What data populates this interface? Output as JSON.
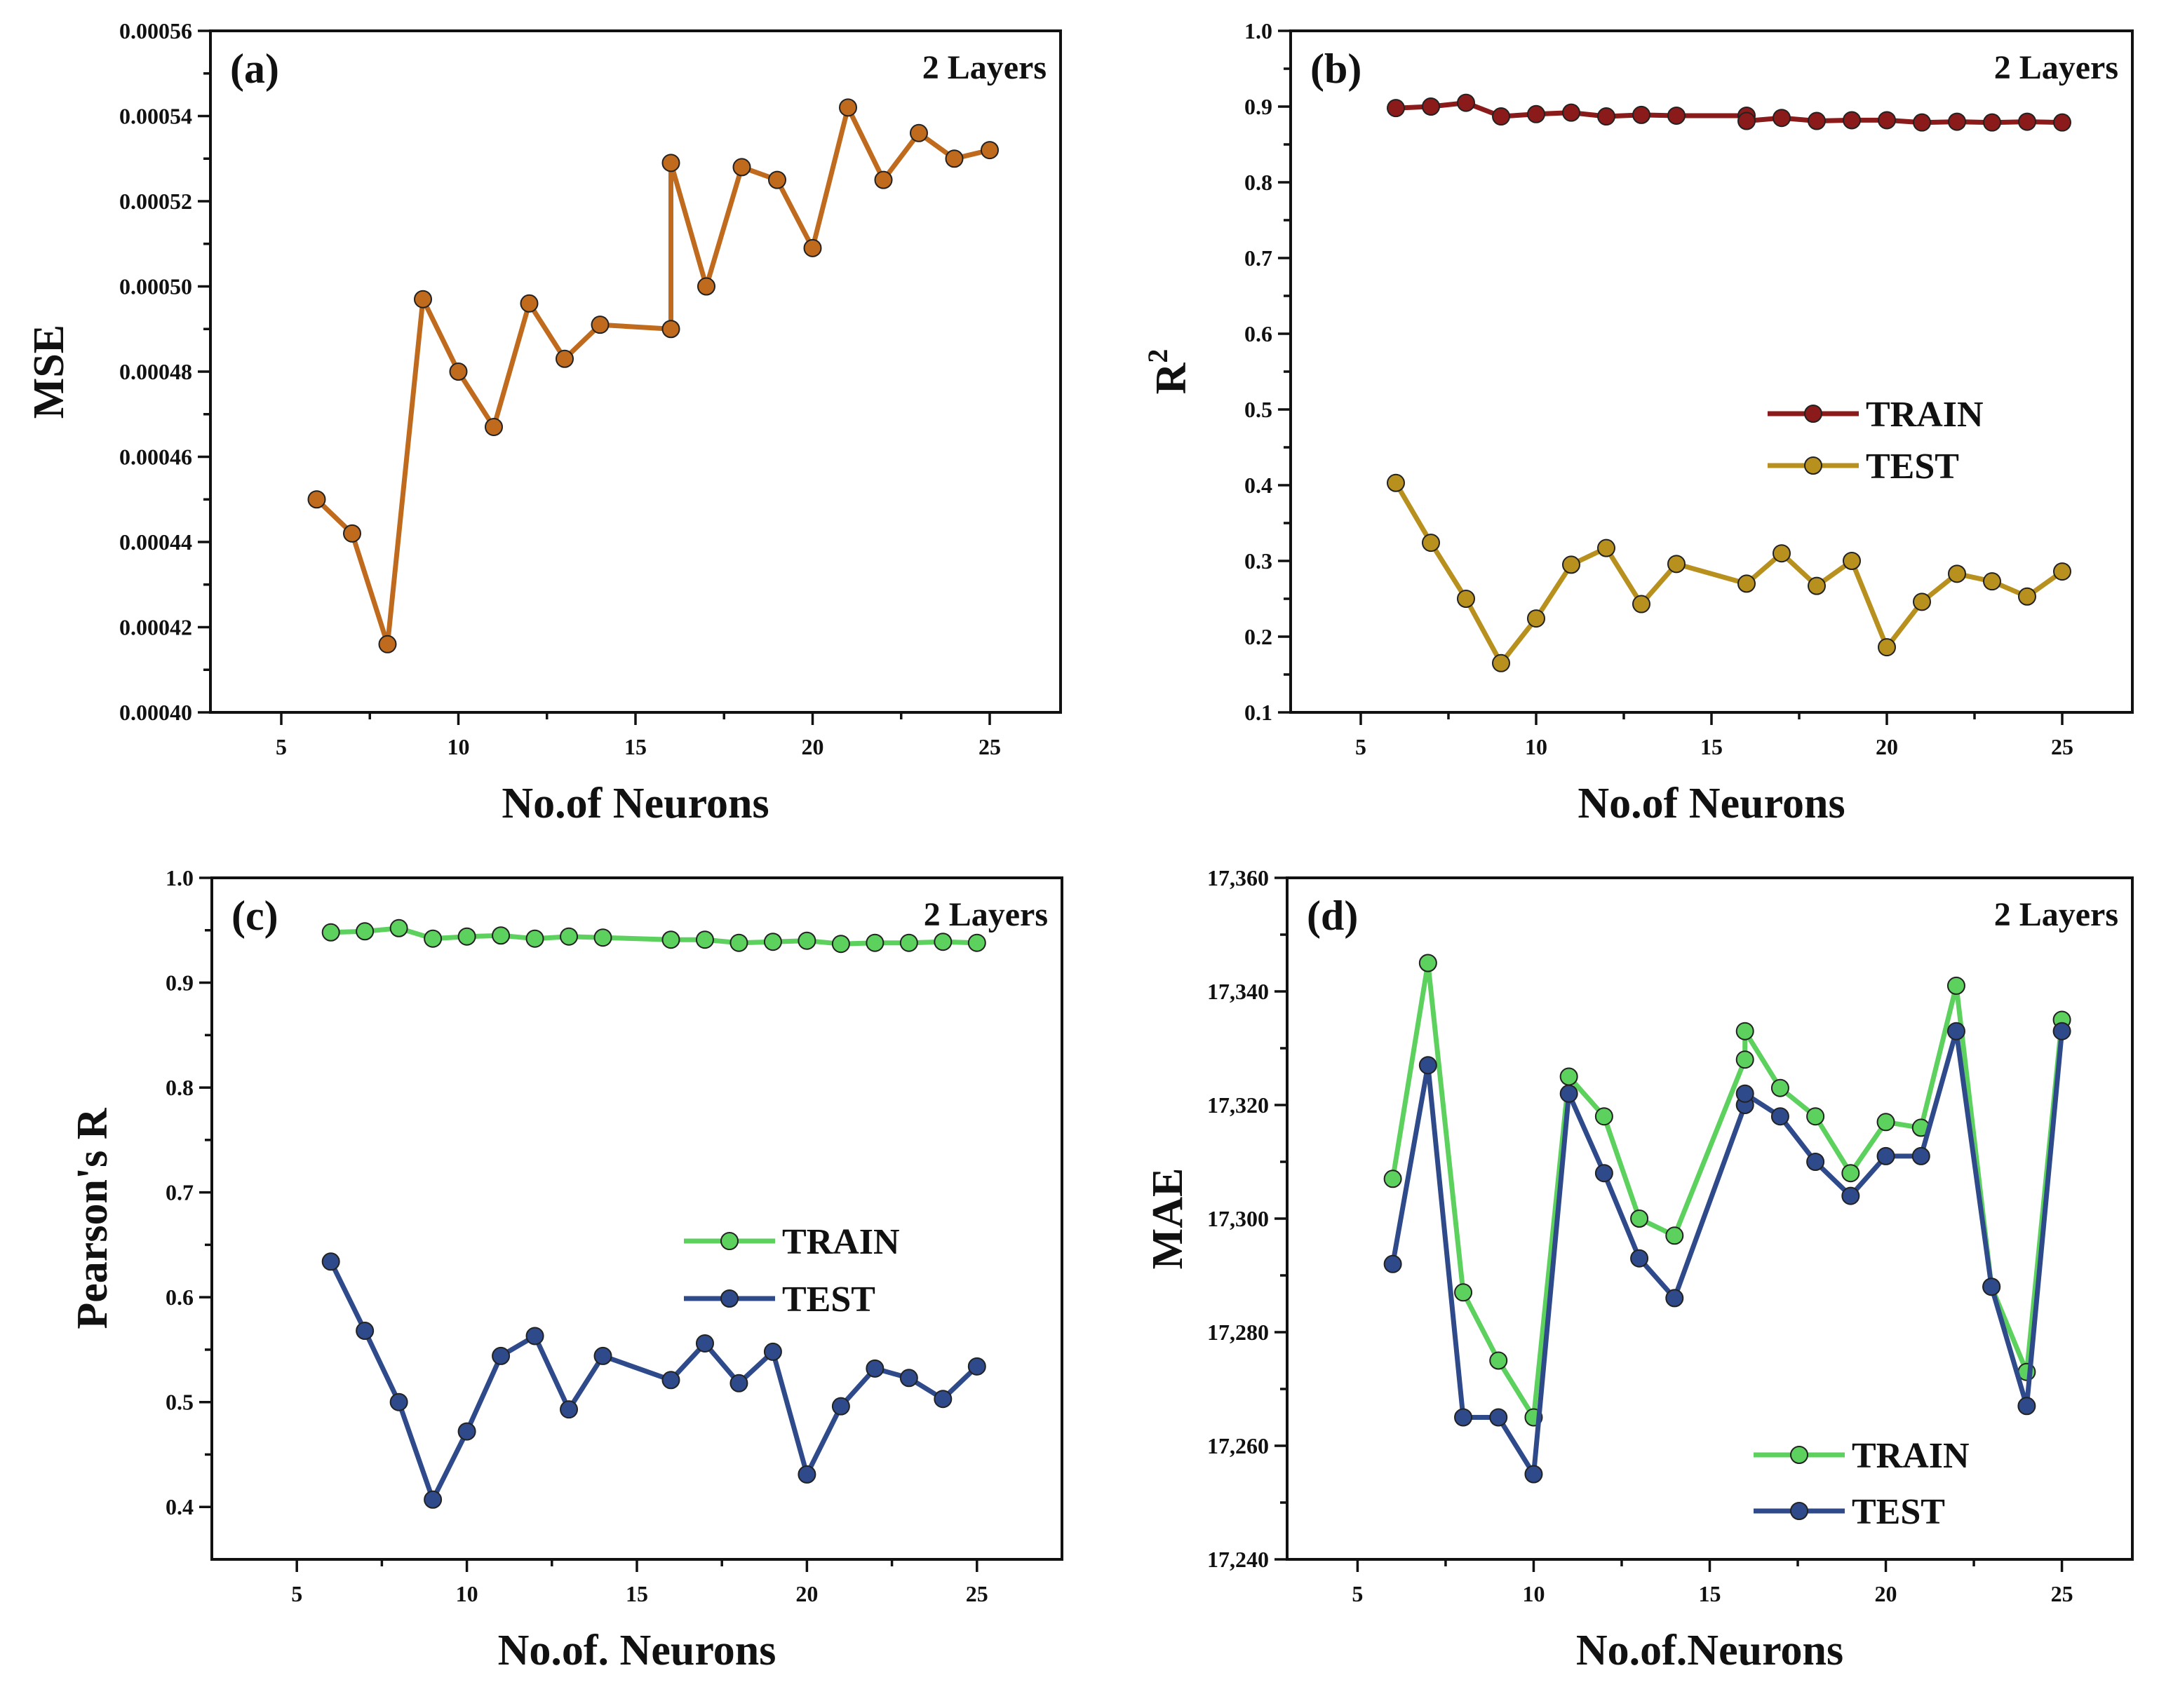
{
  "chart_data": [
    {
      "id": "a",
      "type": "line",
      "panel_label": "(a)",
      "annotation": "2 Layers",
      "title": "",
      "xlabel": "No.of Neurons",
      "ylabel": "MSE",
      "xlim": [
        3,
        27
      ],
      "ylim": [
        0.0004,
        0.00056
      ],
      "xticks": [
        5,
        10,
        15,
        20,
        25
      ],
      "xtick_labels": [
        "5",
        "10",
        "15",
        "20",
        "25"
      ],
      "yticks": [
        0.0004,
        0.00042,
        0.00044,
        0.00046,
        0.00048,
        0.0005,
        0.00052,
        0.00054,
        0.00056
      ],
      "ytick_labels": [
        "0.00040",
        "0.00042",
        "0.00044",
        "0.00046",
        "0.00048",
        "0.00050",
        "0.00052",
        "0.00054",
        "0.00056"
      ],
      "legend": "none",
      "grid": false,
      "series": [
        {
          "color": "#c06a1e",
          "x": [
            6,
            7,
            8,
            9,
            10,
            11,
            12,
            13,
            14,
            16,
            16,
            17,
            18,
            19,
            20,
            21,
            22,
            23,
            24,
            25
          ],
          "y": [
            0.00045,
            0.000442,
            0.000416,
            0.000497,
            0.00048,
            0.000467,
            0.000496,
            0.000483,
            0.000491,
            0.00049,
            0.000529,
            0.0005,
            0.000528,
            0.000525,
            0.000509,
            0.000542,
            0.000525,
            0.000536,
            0.00053,
            0.000532
          ]
        }
      ]
    },
    {
      "id": "b",
      "type": "line",
      "panel_label": "(b)",
      "annotation": "2 Layers",
      "title": "",
      "xlabel": "No.of Neurons",
      "ylabel": "R",
      "ylabel_sup": "2",
      "xlim": [
        3,
        27
      ],
      "ylim": [
        0.1,
        1.0
      ],
      "xticks": [
        5,
        10,
        15,
        20,
        25
      ],
      "xtick_labels": [
        "5",
        "10",
        "15",
        "20",
        "25"
      ],
      "yticks": [
        0.1,
        0.2,
        0.3,
        0.4,
        0.5,
        0.6,
        0.7,
        0.8,
        0.9,
        1.0
      ],
      "ytick_labels": [
        "0.1",
        "0.2",
        "0.3",
        "0.4",
        "0.5",
        "0.6",
        "0.7",
        "0.8",
        "0.9",
        "1.0"
      ],
      "legend": "right",
      "grid": false,
      "series": [
        {
          "name": "TRAIN",
          "color": "#8b1a1a",
          "x": [
            6,
            7,
            8,
            9,
            10,
            11,
            12,
            13,
            14,
            16,
            16,
            17,
            18,
            19,
            20,
            21,
            22,
            23,
            24,
            25
          ],
          "y": [
            0.898,
            0.9,
            0.905,
            0.887,
            0.89,
            0.892,
            0.887,
            0.889,
            0.888,
            0.888,
            0.881,
            0.885,
            0.881,
            0.882,
            0.882,
            0.879,
            0.88,
            0.879,
            0.88,
            0.879
          ]
        },
        {
          "name": "TEST",
          "color": "#b8901e",
          "x": [
            6,
            7,
            8,
            9,
            10,
            11,
            12,
            13,
            14,
            16,
            17,
            18,
            19,
            20,
            21,
            22,
            23,
            24,
            25
          ],
          "y": [
            0.403,
            0.324,
            0.25,
            0.165,
            0.224,
            0.295,
            0.317,
            0.243,
            0.296,
            0.27,
            0.31,
            0.267,
            0.3,
            0.186,
            0.246,
            0.283,
            0.273,
            0.253,
            0.286
          ]
        }
      ]
    },
    {
      "id": "c",
      "type": "line",
      "panel_label": "(c)",
      "annotation": "2 Layers",
      "title": "",
      "xlabel": "No.of. Neurons",
      "ylabel": "Pearson's R",
      "xlim": [
        2.5,
        27.5
      ],
      "ylim": [
        0.35,
        1.0
      ],
      "xticks": [
        5,
        10,
        15,
        20,
        25
      ],
      "xtick_labels": [
        "5",
        "10",
        "15",
        "20",
        "25"
      ],
      "yticks": [
        0.4,
        0.5,
        0.6,
        0.7,
        0.8,
        0.9,
        1.0
      ],
      "ytick_labels": [
        "0.4",
        "0.5",
        "0.6",
        "0.7",
        "0.8",
        "0.9",
        "1.0"
      ],
      "legend": "right",
      "grid": false,
      "series": [
        {
          "name": "TRAIN",
          "color": "#5dd15d",
          "x": [
            6,
            7,
            8,
            9,
            10,
            11,
            12,
            13,
            14,
            16,
            17,
            18,
            19,
            20,
            21,
            22,
            23,
            24,
            25
          ],
          "y": [
            0.948,
            0.949,
            0.952,
            0.942,
            0.944,
            0.945,
            0.942,
            0.944,
            0.943,
            0.941,
            0.941,
            0.938,
            0.939,
            0.94,
            0.937,
            0.938,
            0.938,
            0.939,
            0.938
          ]
        },
        {
          "name": "TEST",
          "color": "#2e4a8a",
          "x": [
            6,
            7,
            8,
            9,
            10,
            11,
            12,
            13,
            14,
            16,
            17,
            18,
            19,
            20,
            21,
            22,
            23,
            24,
            25
          ],
          "y": [
            0.634,
            0.568,
            0.5,
            0.407,
            0.472,
            0.544,
            0.563,
            0.493,
            0.544,
            0.521,
            0.556,
            0.518,
            0.548,
            0.431,
            0.496,
            0.532,
            0.523,
            0.503,
            0.534
          ]
        }
      ]
    },
    {
      "id": "d",
      "type": "line",
      "panel_label": "(d)",
      "annotation": "2 Layers",
      "title": "",
      "xlabel": "No.of.Neurons",
      "ylabel": "MAE",
      "xlim": [
        3,
        27
      ],
      "ylim": [
        17240,
        17360
      ],
      "xticks": [
        5,
        10,
        15,
        20,
        25
      ],
      "xtick_labels": [
        "5",
        "10",
        "15",
        "20",
        "25"
      ],
      "yticks": [
        17240,
        17260,
        17280,
        17300,
        17320,
        17340,
        17360
      ],
      "ytick_labels": [
        "17,240",
        "17,260",
        "17,280",
        "17,300",
        "17,320",
        "17,340",
        "17,360"
      ],
      "legend": "bottom-right",
      "grid": false,
      "series": [
        {
          "name": "TRAIN",
          "color": "#5dd15d",
          "x": [
            6,
            7,
            8,
            9,
            10,
            11,
            12,
            13,
            14,
            16,
            16,
            17,
            18,
            19,
            20,
            21,
            22,
            23,
            24,
            25
          ],
          "y": [
            17307,
            17345,
            17287,
            17275,
            17265,
            17325,
            17318,
            17300,
            17297,
            17328,
            17333,
            17323,
            17318,
            17308,
            17317,
            17316,
            17341,
            17288,
            17273,
            17335
          ]
        },
        {
          "name": "TEST",
          "color": "#2e4a8a",
          "x": [
            6,
            7,
            8,
            9,
            10,
            11,
            12,
            13,
            14,
            16,
            16,
            17,
            18,
            19,
            20,
            21,
            22,
            23,
            24,
            25
          ],
          "y": [
            17292,
            17327,
            17265,
            17265,
            17255,
            17322,
            17308,
            17293,
            17286,
            17320,
            17322,
            17318,
            17310,
            17304,
            17311,
            17311,
            17333,
            17288,
            17267,
            17333
          ]
        }
      ]
    }
  ]
}
